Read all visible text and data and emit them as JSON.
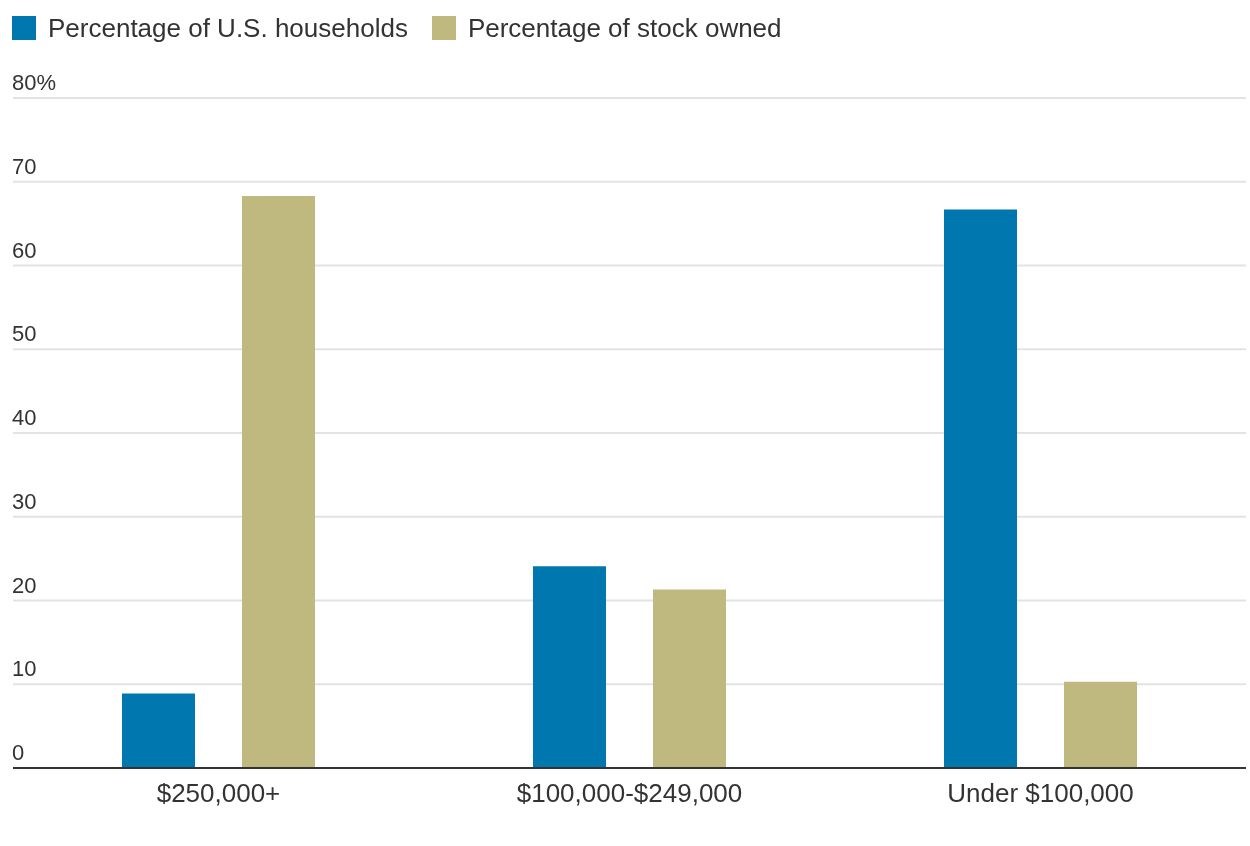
{
  "chart_data": {
    "type": "bar",
    "categories": [
      "$250,000+",
      "$100,000-$249,000",
      "Under $100,000"
    ],
    "series": [
      {
        "name": "Percentage of U.S. households",
        "color": "#0077ae",
        "values": [
          8.9,
          24.1,
          66.7
        ]
      },
      {
        "name": "Percentage of stock owned",
        "color": "#bfb97f",
        "values": [
          68.3,
          21.3,
          10.3
        ]
      }
    ],
    "ylim": [
      0,
      80
    ],
    "yticks": [
      0,
      10,
      20,
      30,
      40,
      50,
      60,
      70,
      {
        "value": 80,
        "label": "80%"
      }
    ],
    "grid": "y",
    "legend": "top left"
  }
}
